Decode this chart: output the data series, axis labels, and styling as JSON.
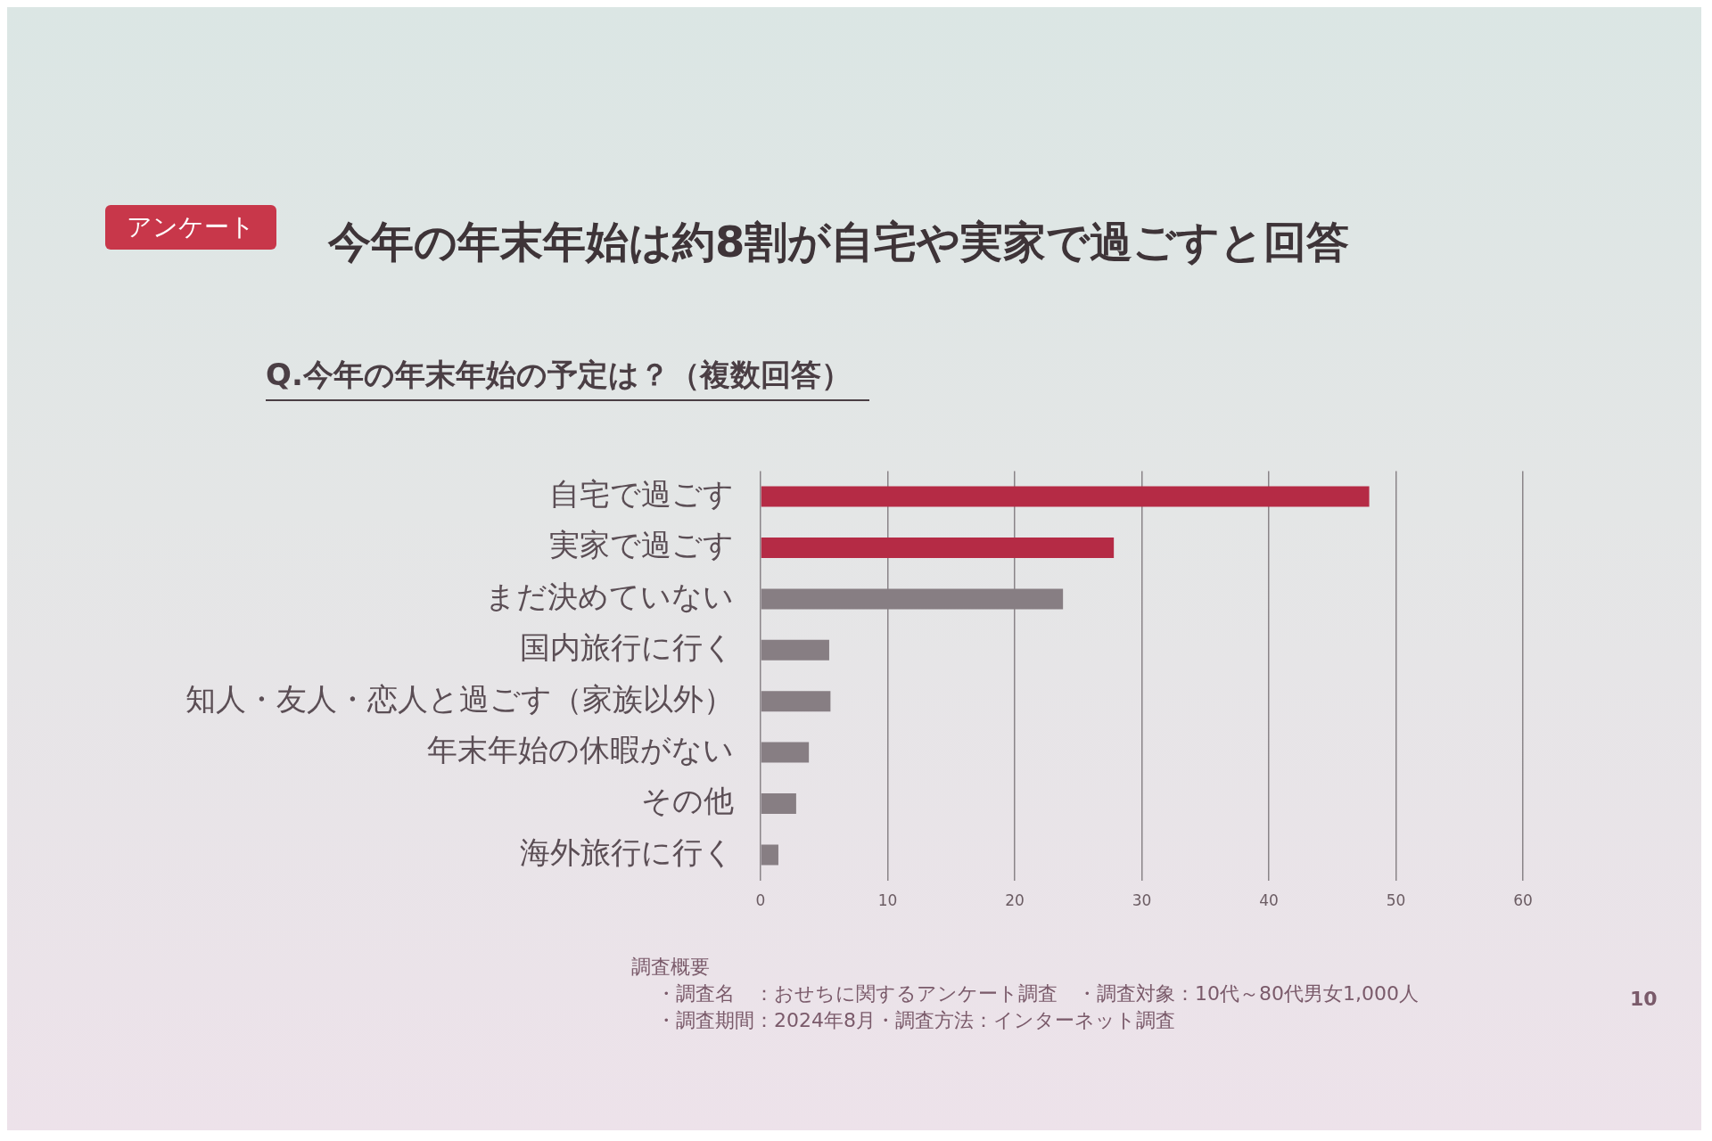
{
  "chart_data": {
    "type": "bar",
    "orientation": "horizontal",
    "title": "今年の年末年始は約8割が自宅や実家で過ごすと回答",
    "subtitle": "Q.今年の年末年始の予定は？（複数回答）",
    "categories": [
      "自宅で過ごす",
      "実家で過ごす",
      "まだ決めていない",
      "国内旅行に行く",
      "知人・友人・恋人と過ごす（家族以外）",
      "年末年始の休暇がない",
      "その他",
      "海外旅行に行く"
    ],
    "values": [
      47.9,
      27.8,
      23.8,
      5.4,
      5.5,
      3.8,
      2.8,
      1.4
    ],
    "colors": [
      "#b52b45",
      "#b52b45",
      "#877e83",
      "#877e83",
      "#877e83",
      "#877e83",
      "#877e83",
      "#877e83"
    ],
    "xlim": [
      0,
      60
    ],
    "xticks": [
      0,
      10,
      20,
      30,
      40,
      50,
      60
    ],
    "grid": "x",
    "annotations": [
      "アンケート",
      "調査概要",
      "・調査名　：おせちに関するアンケート調査　・調査対象：10代～80代男女1,000人",
      "・調査期間：2024年8月・調査方法：インターネット調査",
      "10"
    ]
  }
}
